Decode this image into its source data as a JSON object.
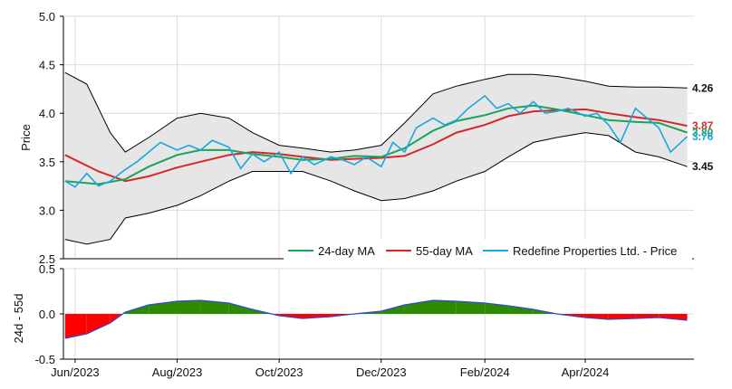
{
  "chart_data": [
    {
      "type": "line",
      "panel": "price",
      "ylabel": "Price",
      "ylim": [
        2.5,
        5.0
      ],
      "yticks": [
        "2.5",
        "3.0",
        "3.5",
        "4.0",
        "4.5",
        "5.0"
      ],
      "x_range": [
        "2023-05-25",
        "2024-06-05"
      ],
      "xticks": [
        "Jun/2023",
        "Aug/2023",
        "Oct/2023",
        "Dec/2023",
        "Feb/2024",
        "Apr/2024"
      ],
      "grid": true,
      "legend_position": "bottom-right",
      "legend": [
        "24-day MA",
        "55-day MA",
        "Redefine Properties Ltd. - Price"
      ],
      "colors": {
        "ma24": "#1aa35a",
        "ma55": "#d62728",
        "price": "#1aa7e0",
        "band": "#e6e6e6",
        "band_line": "#000000"
      },
      "series": [
        {
          "name": "24-day MA",
          "x": [
            "2023-05-26",
            "2023-06-15",
            "2023-07-01",
            "2023-07-15",
            "2023-08-01",
            "2023-08-15",
            "2023-09-01",
            "2023-09-15",
            "2023-10-01",
            "2023-10-15",
            "2023-11-01",
            "2023-11-15",
            "2023-12-01",
            "2023-12-15",
            "2024-01-01",
            "2024-01-15",
            "2024-02-01",
            "2024-02-15",
            "2024-03-01",
            "2024-03-15",
            "2024-04-01",
            "2024-04-15",
            "2024-05-01",
            "2024-05-15",
            "2024-06-01"
          ],
          "values": [
            3.3,
            3.27,
            3.32,
            3.45,
            3.57,
            3.62,
            3.62,
            3.58,
            3.55,
            3.52,
            3.53,
            3.56,
            3.55,
            3.64,
            3.82,
            3.92,
            3.98,
            4.05,
            4.08,
            4.04,
            3.98,
            3.93,
            3.91,
            3.9,
            3.8
          ]
        },
        {
          "name": "55-day MA",
          "x": [
            "2023-05-26",
            "2023-06-15",
            "2023-07-01",
            "2023-07-15",
            "2023-08-01",
            "2023-08-15",
            "2023-09-01",
            "2023-09-15",
            "2023-10-01",
            "2023-10-15",
            "2023-11-01",
            "2023-11-15",
            "2023-12-01",
            "2023-12-15",
            "2024-01-01",
            "2024-01-15",
            "2024-02-01",
            "2024-02-15",
            "2024-03-01",
            "2024-03-15",
            "2024-04-01",
            "2024-04-15",
            "2024-05-01",
            "2024-05-15",
            "2024-06-01"
          ],
          "values": [
            3.57,
            3.4,
            3.3,
            3.35,
            3.44,
            3.5,
            3.57,
            3.6,
            3.58,
            3.55,
            3.52,
            3.53,
            3.54,
            3.56,
            3.68,
            3.8,
            3.88,
            3.97,
            4.02,
            4.03,
            4.04,
            4.0,
            3.96,
            3.93,
            3.87
          ]
        },
        {
          "name": "Redefine Properties Ltd. - Price",
          "x": [
            "2023-05-26",
            "2023-06-01",
            "2023-06-08",
            "2023-06-15",
            "2023-06-22",
            "2023-07-01",
            "2023-07-08",
            "2023-07-15",
            "2023-07-22",
            "2023-08-01",
            "2023-08-08",
            "2023-08-15",
            "2023-08-22",
            "2023-09-01",
            "2023-09-08",
            "2023-09-15",
            "2023-09-22",
            "2023-10-01",
            "2023-10-08",
            "2023-10-15",
            "2023-10-22",
            "2023-11-01",
            "2023-11-08",
            "2023-11-15",
            "2023-11-22",
            "2023-12-01",
            "2023-12-08",
            "2023-12-15",
            "2023-12-22",
            "2024-01-01",
            "2024-01-08",
            "2024-01-15",
            "2024-01-22",
            "2024-02-01",
            "2024-02-08",
            "2024-02-15",
            "2024-02-22",
            "2024-03-01",
            "2024-03-08",
            "2024-03-15",
            "2024-03-22",
            "2024-04-01",
            "2024-04-08",
            "2024-04-15",
            "2024-04-22",
            "2024-05-01",
            "2024-05-08",
            "2024-05-15",
            "2024-05-22",
            "2024-06-01"
          ],
          "values": [
            3.3,
            3.24,
            3.38,
            3.25,
            3.3,
            3.42,
            3.5,
            3.6,
            3.7,
            3.62,
            3.67,
            3.62,
            3.72,
            3.65,
            3.43,
            3.58,
            3.5,
            3.6,
            3.38,
            3.55,
            3.47,
            3.55,
            3.52,
            3.47,
            3.55,
            3.45,
            3.7,
            3.6,
            3.85,
            3.95,
            3.88,
            3.93,
            4.05,
            4.18,
            4.05,
            4.1,
            4.0,
            4.12,
            4.0,
            4.02,
            4.05,
            3.97,
            4.0,
            3.88,
            3.7,
            4.05,
            3.95,
            3.85,
            3.6,
            3.76
          ]
        },
        {
          "name": "upper band",
          "x": [
            "2023-05-26",
            "2023-06-08",
            "2023-06-22",
            "2023-07-01",
            "2023-07-15",
            "2023-08-01",
            "2023-08-15",
            "2023-09-01",
            "2023-09-15",
            "2023-10-01",
            "2023-10-15",
            "2023-11-01",
            "2023-11-15",
            "2023-12-01",
            "2023-12-15",
            "2024-01-01",
            "2024-01-15",
            "2024-02-01",
            "2024-02-15",
            "2024-03-01",
            "2024-03-15",
            "2024-04-01",
            "2024-04-15",
            "2024-05-01",
            "2024-05-15",
            "2024-06-01"
          ],
          "values": [
            4.42,
            4.3,
            3.8,
            3.6,
            3.75,
            3.95,
            4.0,
            3.95,
            3.8,
            3.67,
            3.64,
            3.6,
            3.62,
            3.67,
            3.9,
            4.2,
            4.28,
            4.35,
            4.4,
            4.4,
            4.38,
            4.33,
            4.28,
            4.27,
            4.27,
            4.26
          ]
        },
        {
          "name": "lower band",
          "x": [
            "2023-05-26",
            "2023-06-08",
            "2023-06-22",
            "2023-07-01",
            "2023-07-15",
            "2023-08-01",
            "2023-08-15",
            "2023-09-01",
            "2023-09-15",
            "2023-10-01",
            "2023-10-15",
            "2023-11-01",
            "2023-11-15",
            "2023-12-01",
            "2023-12-15",
            "2024-01-01",
            "2024-01-15",
            "2024-02-01",
            "2024-02-15",
            "2024-03-01",
            "2024-03-15",
            "2024-04-01",
            "2024-04-15",
            "2024-05-01",
            "2024-05-15",
            "2024-06-01"
          ],
          "values": [
            2.7,
            2.65,
            2.7,
            2.92,
            2.97,
            3.05,
            3.15,
            3.3,
            3.4,
            3.4,
            3.4,
            3.3,
            3.2,
            3.1,
            3.12,
            3.2,
            3.3,
            3.4,
            3.55,
            3.7,
            3.75,
            3.8,
            3.77,
            3.6,
            3.55,
            3.45
          ]
        }
      ],
      "end_labels": [
        {
          "text": "4.26",
          "value": 4.26,
          "color": "#111111"
        },
        {
          "text": "3.87",
          "value": 3.87,
          "color": "#d62728"
        },
        {
          "text": "3.80",
          "value": 3.8,
          "color": "#1aa35a"
        },
        {
          "text": "3.76",
          "value": 3.76,
          "color": "#1aa7e0"
        },
        {
          "text": "3.45",
          "value": 3.45,
          "color": "#111111"
        }
      ]
    },
    {
      "type": "area",
      "panel": "oscillator",
      "ylabel": "24d - 55d",
      "ylim": [
        -0.5,
        0.5
      ],
      "yticks": [
        "-0.5",
        "0.0",
        "0.5"
      ],
      "grid": true,
      "colors": {
        "positive": "#2e8b00",
        "negative": "#ff0000",
        "line": "#2a4bd7"
      },
      "x": [
        "2023-05-26",
        "2023-06-08",
        "2023-06-22",
        "2023-07-01",
        "2023-07-15",
        "2023-08-01",
        "2023-08-15",
        "2023-09-01",
        "2023-09-15",
        "2023-10-01",
        "2023-10-15",
        "2023-11-01",
        "2023-11-15",
        "2023-12-01",
        "2023-12-15",
        "2024-01-01",
        "2024-01-15",
        "2024-02-01",
        "2024-02-15",
        "2024-03-01",
        "2024-03-15",
        "2024-04-01",
        "2024-04-15",
        "2024-05-01",
        "2024-05-15",
        "2024-06-01"
      ],
      "values": [
        -0.27,
        -0.22,
        -0.1,
        0.02,
        0.1,
        0.14,
        0.15,
        0.12,
        0.05,
        -0.02,
        -0.05,
        -0.03,
        0.0,
        0.03,
        0.1,
        0.15,
        0.14,
        0.12,
        0.09,
        0.05,
        0.0,
        -0.04,
        -0.06,
        -0.05,
        -0.04,
        -0.07
      ]
    }
  ]
}
